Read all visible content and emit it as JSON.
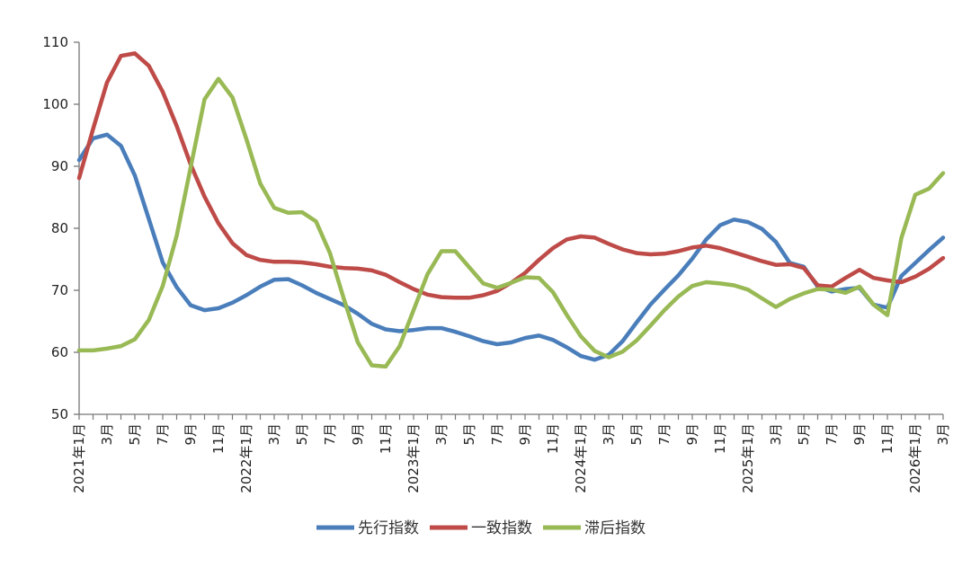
{
  "chart_data": {
    "type": "line",
    "title": "",
    "xlabel": "",
    "ylabel": "",
    "ylim": [
      50,
      110
    ],
    "yticks": [
      50,
      60,
      70,
      80,
      90,
      100,
      110
    ],
    "grid": false,
    "legend_position": "bottom",
    "x_tick_labels": [
      "2021年1月",
      "3月",
      "5月",
      "7月",
      "9月",
      "11月",
      "2022年1月",
      "3月",
      "5月",
      "7月",
      "9月",
      "11月",
      "2023年1月",
      "3月",
      "5月",
      "7月",
      "9月",
      "11月",
      "2024年1月",
      "3月",
      "5月",
      "7月",
      "9月",
      "11月",
      "2025年1月",
      "3月",
      "5月",
      "7月",
      "9月",
      "11月",
      "2026年1月",
      "3月"
    ],
    "x": [
      "2021-01",
      "2021-02",
      "2021-03",
      "2021-04",
      "2021-05",
      "2021-06",
      "2021-07",
      "2021-08",
      "2021-09",
      "2021-10",
      "2021-11",
      "2021-12",
      "2022-01",
      "2022-02",
      "2022-03",
      "2022-04",
      "2022-05",
      "2022-06",
      "2022-07",
      "2022-08",
      "2022-09",
      "2022-10",
      "2022-11",
      "2022-12",
      "2023-01",
      "2023-02",
      "2023-03",
      "2023-04",
      "2023-05",
      "2023-06",
      "2023-07",
      "2023-08",
      "2023-09",
      "2023-10",
      "2023-11",
      "2023-12",
      "2024-01",
      "2024-02",
      "2024-03",
      "2024-04",
      "2024-05",
      "2024-06",
      "2024-07",
      "2024-08",
      "2024-09",
      "2024-10",
      "2024-11",
      "2024-12",
      "2025-01",
      "2025-02",
      "2025-03",
      "2025-04",
      "2025-05",
      "2025-06",
      "2025-07",
      "2025-08",
      "2025-09",
      "2025-10",
      "2025-11",
      "2025-12",
      "2026-01",
      "2026-02",
      "2026-03"
    ],
    "series": [
      {
        "name": "先行指数",
        "color": "#4a7ebb",
        "values": [
          91.0,
          94.5,
          95.1,
          93.3,
          88.5,
          81.5,
          74.5,
          70.5,
          67.6,
          66.8,
          67.1,
          68.0,
          69.2,
          70.6,
          71.7,
          71.8,
          70.8,
          69.6,
          68.6,
          67.6,
          66.2,
          64.6,
          63.7,
          63.4,
          63.6,
          63.9,
          63.9,
          63.3,
          62.6,
          61.8,
          61.3,
          61.6,
          62.3,
          62.7,
          62.0,
          60.8,
          59.4,
          58.8,
          59.6,
          61.8,
          64.8,
          67.7,
          70.1,
          72.4,
          75.1,
          78.2,
          80.5,
          81.4,
          81.0,
          79.9,
          77.8,
          74.4,
          73.8,
          70.6,
          69.8,
          70.2,
          70.4,
          67.7,
          67.2,
          72.3,
          74.4,
          76.5,
          78.5
        ]
      },
      {
        "name": "一致指数",
        "color": "#be4b48",
        "values": [
          88.1,
          96.0,
          103.5,
          107.8,
          108.2,
          106.2,
          102.0,
          96.5,
          90.3,
          85.1,
          80.8,
          77.6,
          75.7,
          74.9,
          74.6,
          74.6,
          74.5,
          74.2,
          73.8,
          73.6,
          73.5,
          73.2,
          72.5,
          71.3,
          70.2,
          69.3,
          68.9,
          68.8,
          68.8,
          69.2,
          69.9,
          71.2,
          72.8,
          74.9,
          76.8,
          78.2,
          78.7,
          78.5,
          77.5,
          76.6,
          76.0,
          75.8,
          75.9,
          76.3,
          76.9,
          77.2,
          76.8,
          76.1,
          75.4,
          74.7,
          74.1,
          74.2,
          73.6,
          70.8,
          70.6,
          72.0,
          73.3,
          72.0,
          71.6,
          71.3,
          72.2,
          73.5,
          75.2
        ]
      },
      {
        "name": "滞后指数",
        "color": "#98b954",
        "values": [
          60.3,
          60.3,
          60.6,
          61.0,
          62.1,
          65.2,
          70.7,
          78.8,
          89.8,
          100.8,
          104.1,
          101.1,
          94.4,
          87.2,
          83.3,
          82.5,
          82.6,
          81.1,
          76.0,
          68.6,
          61.6,
          57.9,
          57.7,
          61.0,
          66.8,
          72.6,
          76.3,
          76.3,
          73.7,
          71.1,
          70.4,
          71.2,
          72.1,
          72.0,
          69.7,
          66.0,
          62.6,
          60.2,
          59.2,
          60.1,
          61.9,
          64.3,
          66.8,
          69.0,
          70.7,
          71.3,
          71.1,
          70.8,
          70.1,
          68.7,
          67.3,
          68.6,
          69.5,
          70.2,
          70.1,
          69.6,
          70.6,
          67.7,
          66.0,
          78.4,
          85.4,
          86.4,
          88.9
        ]
      }
    ]
  }
}
